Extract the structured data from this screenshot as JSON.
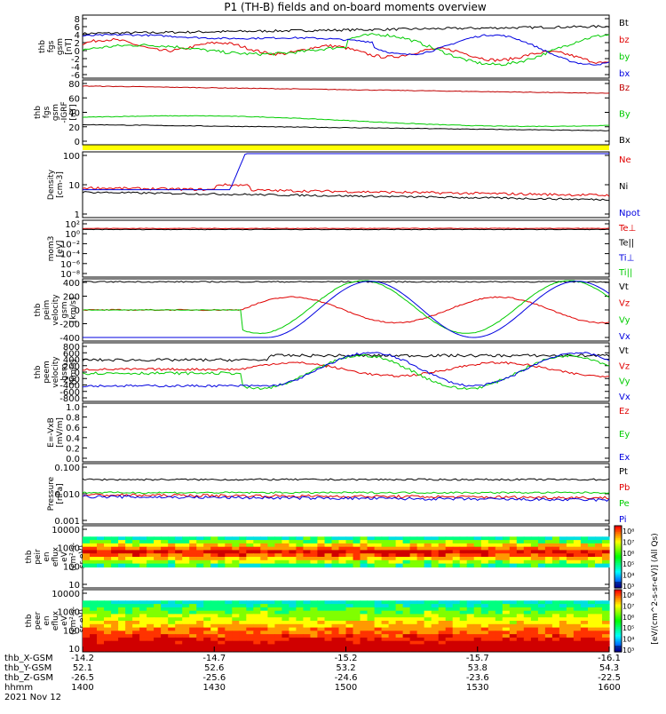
{
  "title": "P1 (TH-B) fields and on-board moments overview",
  "chart_data": [
    {
      "type": "line",
      "ylabel": [
        "thb",
        "fgs",
        "gsm",
        "[nT]"
      ],
      "yticks": [
        "8",
        "6",
        "4",
        "2",
        "0",
        "-2",
        "-4",
        "-6"
      ],
      "ylim": [
        -6,
        8
      ],
      "series": [
        {
          "name": "Bt",
          "color": "#000000"
        },
        {
          "name": "bz",
          "color": "#e00000"
        },
        {
          "name": "by",
          "color": "#00cc00"
        },
        {
          "name": "bx",
          "color": "#0000e0"
        }
      ]
    },
    {
      "type": "line",
      "ylabel": [
        "thb",
        "fgs",
        "gsm",
        "-IGRF",
        "[nT]"
      ],
      "yticks": [
        "80",
        "60",
        "40",
        "20",
        "0"
      ],
      "ylim": [
        -5,
        80
      ],
      "series": [
        {
          "name": "Bz",
          "color": "#c00000"
        },
        {
          "name": "By",
          "color": "#00cc00"
        },
        {
          "name": "Bx",
          "color": "#000000"
        }
      ]
    },
    {
      "type": "line",
      "ylabel": [
        "Density",
        "[cm-3]"
      ],
      "yticks": [
        "100",
        "10",
        "1"
      ],
      "ylim": [
        1,
        300
      ],
      "scale": "log",
      "series": [
        {
          "name": "Ne",
          "color": "#e00000"
        },
        {
          "name": "Ni",
          "color": "#000000"
        },
        {
          "name": "Npot",
          "color": "#0000e0"
        }
      ]
    },
    {
      "type": "line",
      "ylabel": [
        "mom3",
        "[eV]"
      ],
      "yticks": [
        "10²",
        "10⁰",
        "10⁻²",
        "10⁻⁴",
        "10⁻⁶",
        "10⁻⁸"
      ],
      "series": [
        {
          "name": "Te⊥",
          "color": "#e00000"
        },
        {
          "name": "Te||",
          "color": "#000000"
        },
        {
          "name": "Ti⊥",
          "color": "#0000e0"
        },
        {
          "name": "Ti||",
          "color": "#00cc00"
        }
      ]
    },
    {
      "type": "line",
      "ylabel": [
        "thb",
        "peim",
        "velocity",
        "gsm",
        "[km/s]"
      ],
      "yticks": [
        "400",
        "200",
        "0",
        "-200",
        "-400"
      ],
      "ylim": [
        -400,
        400
      ],
      "series": [
        {
          "name": "Vt",
          "color": "#000000"
        },
        {
          "name": "Vz",
          "color": "#e00000"
        },
        {
          "name": "Vy",
          "color": "#00cc00"
        },
        {
          "name": "Vx",
          "color": "#0000e0"
        }
      ]
    },
    {
      "type": "line",
      "ylabel": [
        "thb",
        "peem",
        "velocity",
        "gsm",
        "[km/s]"
      ],
      "yticks": [
        "800",
        "600",
        "400",
        "200",
        "0",
        "-200",
        "-400",
        "-600",
        "-800"
      ],
      "ylim": [
        -800,
        800
      ],
      "series": [
        {
          "name": "Vt",
          "color": "#000000"
        },
        {
          "name": "Vz",
          "color": "#e00000"
        },
        {
          "name": "Vy",
          "color": "#00cc00"
        },
        {
          "name": "Vx",
          "color": "#0000e0"
        }
      ]
    },
    {
      "type": "line",
      "ylabel": [
        "E=-VxB",
        "[mV/m]"
      ],
      "yticks": [
        "1.0",
        "0.8",
        "0.6",
        "0.4",
        "0.2",
        "0.0"
      ],
      "ylim": [
        0,
        1
      ],
      "series": [
        {
          "name": "Ez",
          "color": "#e00000"
        },
        {
          "name": "Ey",
          "color": "#00cc00"
        },
        {
          "name": "Ex",
          "color": "#0000e0"
        }
      ]
    },
    {
      "type": "line",
      "ylabel": [
        "Pressure",
        "[nPa]"
      ],
      "yticks": [
        "0.100",
        "0.010",
        "0.001"
      ],
      "scale": "log",
      "series": [
        {
          "name": "Pt",
          "color": "#000000"
        },
        {
          "name": "Pb",
          "color": "#e00000"
        },
        {
          "name": "Pe",
          "color": "#00cc00"
        },
        {
          "name": "Pi",
          "color": "#0000e0"
        }
      ]
    },
    {
      "type": "heatmap",
      "ylabel": [
        "thb",
        "peir",
        "en",
        "eflux",
        "eV",
        "(cm²-s-",
        "sr-eV)"
      ],
      "yticks": [
        "10000",
        "1000",
        "100",
        "10"
      ],
      "scale": "log"
    },
    {
      "type": "heatmap",
      "ylabel": [
        "thb",
        "peer",
        "en",
        "eflux",
        "eV",
        "(cm²-s-",
        "sr-eV)"
      ],
      "yticks": [
        "10000",
        "1000",
        "100",
        "10"
      ],
      "scale": "log"
    }
  ],
  "colorbar": {
    "label": "[eV/(cm^2-s-sr-eV)] (All Qs)",
    "ticks_top": [
      "10⁸",
      "10⁷",
      "10⁶",
      "10⁵",
      "10⁴",
      "10³"
    ],
    "ticks_bottom": [
      "10⁸",
      "10⁷",
      "10⁶",
      "10⁵",
      "10⁴",
      "10³"
    ]
  },
  "footer": {
    "labels": [
      "thb_X-GSM",
      "thb_Y-GSM",
      "thb_Z-GSM",
      "hhmm",
      "2021 Nov 12"
    ],
    "columns": [
      [
        "-14.2",
        "52.1",
        "-26.5",
        "1400"
      ],
      [
        "-14.7",
        "52.6",
        "-25.6",
        "1430"
      ],
      [
        "-15.2",
        "53.2",
        "-24.6",
        "1500"
      ],
      [
        "-15.7",
        "53.8",
        "-23.6",
        "1530"
      ],
      [
        "-16.1",
        "54.3",
        "-22.5",
        "1600"
      ]
    ]
  }
}
